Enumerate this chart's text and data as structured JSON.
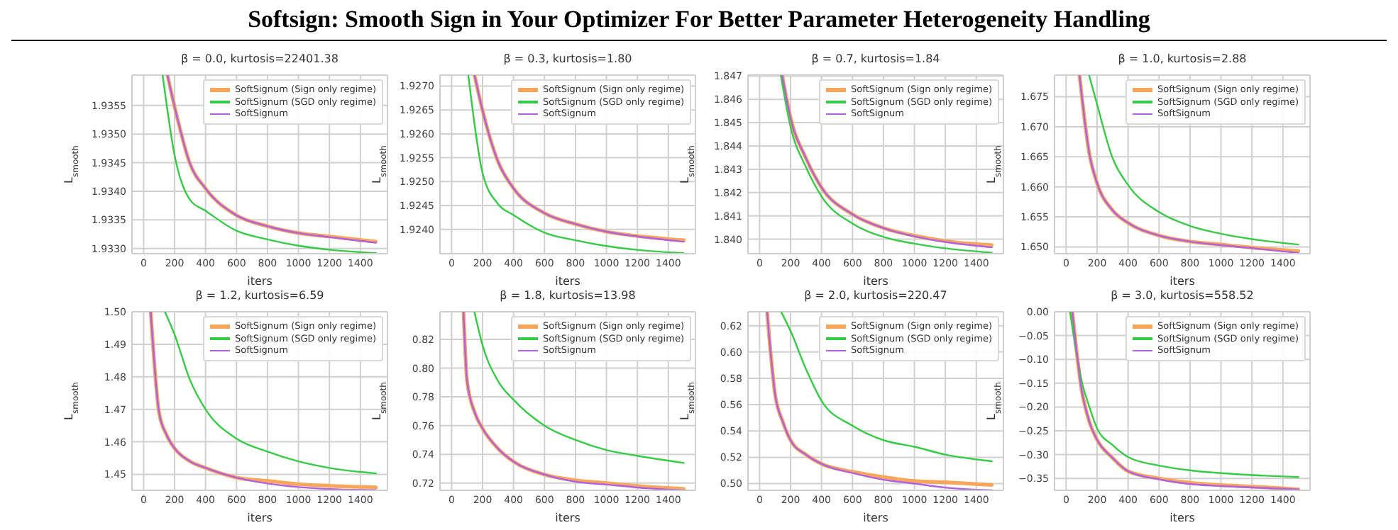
{
  "chart_data": [
    {
      "type": "line",
      "title": "β = 0.0, kurtosis=22401.38",
      "annotations": [
        "Softsign: Smooth Sign in Your Optimizer For Better Parameter Heterogeneity Handling"
      ],
      "xlabel": "iters",
      "ylabel": "L$_{smooth}$",
      "xlim": [
        -75,
        1575
      ],
      "xticks": [
        0,
        200,
        400,
        600,
        800,
        1000,
        1200,
        1400
      ],
      "ylim": [
        1.93291,
        1.93603
      ],
      "yticks": [
        {
          "value": 1.933,
          "label": "1.9330"
        },
        {
          "value": 1.9335,
          "label": "1.9335"
        },
        {
          "value": 1.934,
          "label": "1.9340"
        },
        {
          "value": 1.9345,
          "label": "1.9345"
        },
        {
          "value": 1.935,
          "label": "1.9350"
        },
        {
          "value": 1.9355,
          "label": "1.9355"
        }
      ],
      "grid": true,
      "legend": "top right",
      "series": [
        {
          "name": "SoftSignum (Sign only regime)",
          "color": "#f8a65c",
          "x": [
            154,
            200,
            300,
            400,
            600,
            800,
            1000,
            1200,
            1500
          ],
          "values": [
            1.93603,
            1.93548,
            1.93448,
            1.93405,
            1.93358,
            1.93339,
            1.93327,
            1.93321,
            1.93312
          ]
        },
        {
          "name": "SoftSignum (SGD only regime)",
          "color": "#33cc44",
          "x": [
            123,
            200,
            300,
            400,
            600,
            800,
            1000,
            1200,
            1500
          ],
          "values": [
            1.93603,
            1.93463,
            1.93385,
            1.93366,
            1.93331,
            1.93316,
            1.93305,
            1.93298,
            1.93292
          ]
        },
        {
          "name": "SoftSignum",
          "color": "#b060e0",
          "x": [
            154,
            200,
            300,
            400,
            600,
            800,
            1000,
            1200,
            1500
          ],
          "values": [
            1.93603,
            1.93548,
            1.93448,
            1.93405,
            1.93358,
            1.93339,
            1.93327,
            1.9332,
            1.9331
          ]
        }
      ]
    },
    {
      "type": "line",
      "title": "β = 0.3, kurtosis=1.80",
      "xlabel": "iters",
      "ylabel": "L$_{smooth}$",
      "xlim": [
        -75,
        1575
      ],
      "xticks": [
        0,
        200,
        400,
        600,
        800,
        1000,
        1200,
        1400
      ],
      "ylim": [
        1.92349,
        1.92723
      ],
      "yticks": [
        {
          "value": 1.924,
          "label": "1.9240"
        },
        {
          "value": 1.9245,
          "label": "1.9245"
        },
        {
          "value": 1.925,
          "label": "1.9250"
        },
        {
          "value": 1.9255,
          "label": "1.9255"
        },
        {
          "value": 1.926,
          "label": "1.9260"
        },
        {
          "value": 1.9265,
          "label": "1.9265"
        },
        {
          "value": 1.927,
          "label": "1.9270"
        }
      ],
      "grid": true,
      "legend": "top right",
      "series": [
        {
          "name": "SoftSignum (Sign only regime)",
          "color": "#f8a65c",
          "x": [
            148,
            200,
            300,
            400,
            600,
            800,
            1000,
            1200,
            1500
          ],
          "values": [
            1.92723,
            1.92649,
            1.92542,
            1.92486,
            1.92434,
            1.92411,
            1.92395,
            1.92386,
            1.92377
          ]
        },
        {
          "name": "SoftSignum (SGD only regime)",
          "color": "#33cc44",
          "x": [
            108,
            200,
            300,
            400,
            600,
            800,
            1000,
            1200,
            1500
          ],
          "values": [
            1.92723,
            1.92518,
            1.92453,
            1.9243,
            1.92393,
            1.92377,
            1.92365,
            1.92357,
            1.9235
          ]
        },
        {
          "name": "SoftSignum",
          "color": "#b060e0",
          "x": [
            148,
            200,
            300,
            400,
            600,
            800,
            1000,
            1200,
            1500
          ],
          "values": [
            1.92723,
            1.92649,
            1.92542,
            1.92486,
            1.92434,
            1.92411,
            1.92395,
            1.92385,
            1.92374
          ]
        }
      ]
    },
    {
      "type": "line",
      "title": "β = 0.7, kurtosis=1.84",
      "xlabel": "iters",
      "ylabel": "L$_{smooth}$",
      "xlim": [
        -75,
        1575
      ],
      "xticks": [
        0,
        200,
        400,
        600,
        800,
        1000,
        1200,
        1400
      ],
      "ylim": [
        1.83938,
        1.84704
      ],
      "yticks": [
        {
          "value": 1.84,
          "label": "1.840"
        },
        {
          "value": 1.841,
          "label": "1.841"
        },
        {
          "value": 1.842,
          "label": "1.842"
        },
        {
          "value": 1.843,
          "label": "1.843"
        },
        {
          "value": 1.844,
          "label": "1.844"
        },
        {
          "value": 1.845,
          "label": "1.845"
        },
        {
          "value": 1.846,
          "label": "1.846"
        },
        {
          "value": 1.847,
          "label": "1.847"
        }
      ],
      "grid": true,
      "legend": "top right",
      "series": [
        {
          "name": "SoftSignum (Sign only regime)",
          "color": "#f8a65c",
          "x": [
            146,
            200,
            300,
            400,
            600,
            800,
            1000,
            1200,
            1500
          ],
          "values": [
            1.84704,
            1.84521,
            1.84347,
            1.84222,
            1.84107,
            1.84048,
            1.84015,
            1.83992,
            1.83975
          ]
        },
        {
          "name": "SoftSignum (SGD only regime)",
          "color": "#33cc44",
          "x": [
            137,
            200,
            300,
            400,
            600,
            800,
            1000,
            1200,
            1500
          ],
          "values": [
            1.84704,
            1.84482,
            1.84309,
            1.84184,
            1.84067,
            1.8401,
            1.83981,
            1.83961,
            1.83942
          ]
        },
        {
          "name": "SoftSignum",
          "color": "#b060e0",
          "x": [
            146,
            200,
            300,
            400,
            600,
            800,
            1000,
            1200,
            1500
          ],
          "values": [
            1.84704,
            1.84521,
            1.84347,
            1.84222,
            1.84107,
            1.84048,
            1.84012,
            1.83988,
            1.83965
          ]
        }
      ]
    },
    {
      "type": "line",
      "title": "β = 1.0, kurtosis=2.88",
      "xlabel": "iters",
      "ylabel": "L$_{smooth}$",
      "xlim": [
        -75,
        1575
      ],
      "xticks": [
        0,
        200,
        400,
        600,
        800,
        1000,
        1200,
        1400
      ],
      "ylim": [
        1.64888,
        1.6786
      ],
      "yticks": [
        {
          "value": 1.65,
          "label": "1.650"
        },
        {
          "value": 1.655,
          "label": "1.655"
        },
        {
          "value": 1.66,
          "label": "1.660"
        },
        {
          "value": 1.665,
          "label": "1.665"
        },
        {
          "value": 1.67,
          "label": "1.670"
        },
        {
          "value": 1.675,
          "label": "1.675"
        }
      ],
      "grid": true,
      "legend": "top right",
      "series": [
        {
          "name": "SoftSignum (Sign only regime)",
          "color": "#f8a65c",
          "x": [
            86,
            150,
            200,
            300,
            400,
            600,
            800,
            1000,
            1200,
            1500
          ],
          "values": [
            1.6786,
            1.6655,
            1.6606,
            1.6561,
            1.654,
            1.6519,
            1.6509,
            1.6504,
            1.6499,
            1.6493
          ]
        },
        {
          "name": "SoftSignum (SGD only regime)",
          "color": "#33cc44",
          "x": [
            148,
            200,
            300,
            400,
            600,
            800,
            1000,
            1200,
            1500
          ],
          "values": [
            1.6786,
            1.6737,
            1.6648,
            1.6603,
            1.6558,
            1.6535,
            1.6522,
            1.6513,
            1.6504
          ]
        },
        {
          "name": "SoftSignum",
          "color": "#b060e0",
          "x": [
            86,
            150,
            200,
            300,
            400,
            600,
            800,
            1000,
            1200,
            1500
          ],
          "values": [
            1.6786,
            1.6655,
            1.6606,
            1.6561,
            1.654,
            1.6519,
            1.6509,
            1.6503,
            1.6498,
            1.649
          ]
        }
      ]
    },
    {
      "type": "line",
      "title": "β = 1.2, kurtosis=6.59",
      "xlabel": "iters",
      "ylabel": "L$_{smooth}$",
      "xlim": [
        -75,
        1575
      ],
      "xticks": [
        0,
        200,
        400,
        600,
        800,
        1000,
        1200,
        1400
      ],
      "ylim": [
        1.4451,
        1.5
      ],
      "yticks": [
        1.45,
        1.46,
        1.47,
        1.48,
        1.49,
        {
          "value": 1.5,
          "label": "1.50"
        }
      ],
      "grid": true,
      "legend": "top right",
      "series": [
        {
          "name": "SoftSignum (Sign only regime)",
          "color": "#f8a65c",
          "x": [
            46,
            100,
            150,
            200,
            300,
            400,
            600,
            800,
            1000,
            1200,
            1500
          ],
          "values": [
            1.5,
            1.469,
            1.462,
            1.458,
            1.454,
            1.452,
            1.449,
            1.448,
            1.447,
            1.4465,
            1.446
          ]
        },
        {
          "name": "SoftSignum (SGD only regime)",
          "color": "#33cc44",
          "x": [
            138,
            200,
            300,
            400,
            600,
            800,
            1000,
            1200,
            1500
          ],
          "values": [
            1.5,
            1.493,
            1.479,
            1.47,
            1.461,
            1.457,
            1.454,
            1.452,
            1.4503
          ]
        },
        {
          "name": "SoftSignum",
          "color": "#b060e0",
          "x": [
            46,
            100,
            150,
            200,
            300,
            400,
            600,
            800,
            1000,
            1200,
            1500
          ],
          "values": [
            1.5,
            1.469,
            1.462,
            1.458,
            1.454,
            1.452,
            1.449,
            1.4472,
            1.4461,
            1.4455,
            1.4452
          ]
        }
      ]
    },
    {
      "type": "line",
      "title": "β = 1.8, kurtosis=13.98",
      "xlabel": "iters",
      "ylabel": "L$_{smooth}$",
      "xlim": [
        -75,
        1575
      ],
      "xticks": [
        0,
        200,
        400,
        600,
        800,
        1000,
        1200,
        1400
      ],
      "ylim": [
        0.715,
        0.8392
      ],
      "yticks": [
        {
          "value": 0.72,
          "label": "0.72"
        },
        {
          "value": 0.74,
          "label": "0.74"
        },
        {
          "value": 0.76,
          "label": "0.76"
        },
        {
          "value": 0.78,
          "label": "0.78"
        },
        {
          "value": 0.8,
          "label": "0.80"
        },
        {
          "value": 0.82,
          "label": "0.82"
        }
      ],
      "grid": true,
      "legend": "top right",
      "series": [
        {
          "name": "SoftSignum (Sign only regime)",
          "color": "#f8a65c",
          "x": [
            77,
            100,
            150,
            200,
            300,
            400,
            600,
            800,
            1000,
            1200,
            1500
          ],
          "values": [
            0.839,
            0.791,
            0.769,
            0.758,
            0.744,
            0.735,
            0.726,
            0.722,
            0.72,
            0.718,
            0.716
          ]
        },
        {
          "name": "SoftSignum (SGD only regime)",
          "color": "#33cc44",
          "x": [
            148,
            200,
            300,
            400,
            600,
            800,
            1000,
            1200,
            1500
          ],
          "values": [
            0.839,
            0.816,
            0.791,
            0.778,
            0.76,
            0.75,
            0.743,
            0.739,
            0.734
          ]
        },
        {
          "name": "SoftSignum",
          "color": "#b060e0",
          "x": [
            77,
            100,
            150,
            200,
            300,
            400,
            600,
            800,
            1000,
            1200,
            1500
          ],
          "values": [
            0.839,
            0.791,
            0.769,
            0.758,
            0.744,
            0.735,
            0.726,
            0.721,
            0.719,
            0.717,
            0.715
          ]
        }
      ]
    },
    {
      "type": "line",
      "title": "β = 2.0, kurtosis=220.47",
      "xlabel": "iters",
      "ylabel": "L$_{smooth}$",
      "xlim": [
        -75,
        1575
      ],
      "xticks": [
        0,
        200,
        400,
        600,
        800,
        1000,
        1200,
        1400
      ],
      "ylim": [
        0.4949,
        0.6306
      ],
      "yticks": [
        {
          "value": 0.5,
          "label": "0.50"
        },
        0.52,
        0.54,
        0.56,
        0.58,
        {
          "value": 0.6,
          "label": "0.60"
        },
        0.62
      ],
      "grid": true,
      "legend": "top right",
      "series": [
        {
          "name": "SoftSignum (Sign only regime)",
          "color": "#f8a65c",
          "x": [
            49,
            100,
            150,
            200,
            300,
            400,
            600,
            800,
            1000,
            1200,
            1500
          ],
          "values": [
            0.63,
            0.568,
            0.547,
            0.533,
            0.522,
            0.515,
            0.509,
            0.505,
            0.502,
            0.501,
            0.499
          ]
        },
        {
          "name": "SoftSignum (SGD only regime)",
          "color": "#33cc44",
          "x": [
            142,
            200,
            300,
            400,
            600,
            800,
            1000,
            1200,
            1500
          ],
          "values": [
            0.63,
            0.616,
            0.587,
            0.563,
            0.544,
            0.533,
            0.528,
            0.522,
            0.517
          ]
        },
        {
          "name": "SoftSignum",
          "color": "#b060e0",
          "x": [
            49,
            100,
            150,
            200,
            300,
            400,
            600,
            800,
            1000,
            1200,
            1500
          ],
          "values": [
            0.63,
            0.568,
            0.547,
            0.533,
            0.522,
            0.515,
            0.508,
            0.503,
            0.5,
            0.497,
            0.495
          ]
        }
      ]
    },
    {
      "type": "line",
      "title": "β = 3.0, kurtosis=558.52",
      "xlabel": "iters",
      "ylabel": "L$_{smooth}$",
      "xlim": [
        -75,
        1575
      ],
      "xticks": [
        0,
        200,
        400,
        600,
        800,
        1000,
        1200,
        1400
      ],
      "ylim": [
        -0.375,
        0
      ],
      "yticks": [
        {
          "value": -0.35,
          "label": "−0.35"
        },
        {
          "value": -0.3,
          "label": "−0.30"
        },
        {
          "value": -0.25,
          "label": "−0.25"
        },
        {
          "value": -0.2,
          "label": "−0.20"
        },
        {
          "value": -0.15,
          "label": "−0.15"
        },
        {
          "value": -0.1,
          "label": "−0.10"
        },
        {
          "value": -0.05,
          "label": "−0.05"
        },
        {
          "value": 0,
          "label": "0.00"
        }
      ],
      "grid": true,
      "legend": "top right",
      "series": [
        {
          "name": "SoftSignum (Sign only regime)",
          "color": "#f8a65c",
          "x": [
            40,
            100,
            150,
            200,
            300,
            400,
            600,
            800,
            1000,
            1200,
            1500
          ],
          "values": [
            0,
            -0.164,
            -0.231,
            -0.269,
            -0.307,
            -0.335,
            -0.35,
            -0.359,
            -0.364,
            -0.367,
            -0.373
          ]
        },
        {
          "name": "SoftSignum (SGD only regime)",
          "color": "#33cc44",
          "x": [
            25,
            100,
            150,
            200,
            300,
            400,
            600,
            800,
            1000,
            1200,
            1500
          ],
          "values": [
            0,
            -0.145,
            -0.2,
            -0.245,
            -0.28,
            -0.305,
            -0.323,
            -0.333,
            -0.339,
            -0.343,
            -0.347
          ]
        },
        {
          "name": "SoftSignum",
          "color": "#b060e0",
          "x": [
            40,
            100,
            150,
            200,
            300,
            400,
            600,
            800,
            1000,
            1200,
            1500
          ],
          "values": [
            0,
            -0.164,
            -0.231,
            -0.269,
            -0.307,
            -0.335,
            -0.352,
            -0.362,
            -0.366,
            -0.369,
            -0.373
          ]
        }
      ]
    }
  ]
}
